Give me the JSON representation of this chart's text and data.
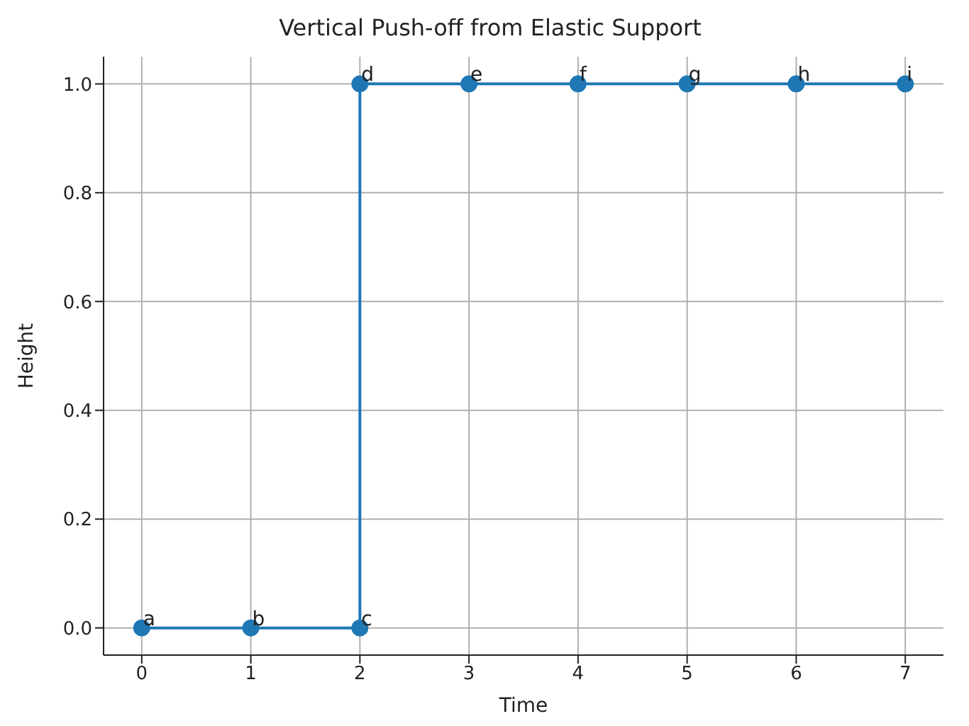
{
  "chart_data": {
    "type": "line",
    "title": "Vertical Push-off from Elastic Support",
    "xlabel": "Time",
    "ylabel": "Height",
    "x": [
      0,
      1,
      2,
      2,
      3,
      4,
      5,
      6,
      7
    ],
    "series": [
      {
        "color": "#1f77b4",
        "values": [
          0,
          0,
          0,
          1,
          1,
          1,
          1,
          1,
          1
        ]
      }
    ],
    "xlim": [
      -0.35,
      7.35
    ],
    "xticks": [
      0,
      1,
      2,
      3,
      4,
      5,
      6,
      7
    ],
    "ylim": [
      -0.05,
      1.05
    ],
    "yticks": [
      {
        "value": 0,
        "label": "0.0"
      },
      {
        "value": 0.2,
        "label": "0.2"
      },
      {
        "value": 0.4,
        "label": "0.4"
      },
      {
        "value": 0.6,
        "label": "0.6"
      },
      {
        "value": 0.8,
        "label": "0.8"
      },
      {
        "value": 1,
        "label": "1.0"
      }
    ],
    "annotations": [
      {
        "text": "a",
        "x": 0,
        "y": 0
      },
      {
        "text": "b",
        "x": 1,
        "y": 0
      },
      {
        "text": "c",
        "x": 2,
        "y": 0
      },
      {
        "text": "d",
        "x": 2,
        "y": 1
      },
      {
        "text": "e",
        "x": 3,
        "y": 1
      },
      {
        "text": "f",
        "x": 4,
        "y": 1
      },
      {
        "text": "g",
        "x": 5,
        "y": 1
      },
      {
        "text": "h",
        "x": 6,
        "y": 1
      },
      {
        "text": "i",
        "x": 7,
        "y": 1
      }
    ],
    "grid": true,
    "marker": "circle",
    "line_style": "solid"
  }
}
